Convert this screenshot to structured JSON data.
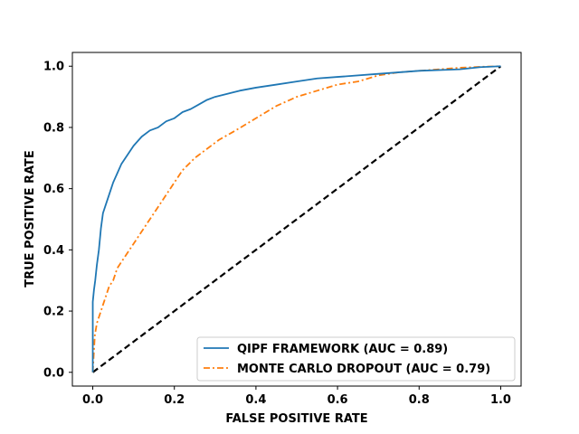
{
  "chart_data": {
    "type": "line",
    "title": "",
    "xlabel": "FALSE POSITIVE RATE",
    "ylabel": "TRUE POSITIVE RATE",
    "xlim": [
      -0.05,
      1.05
    ],
    "ylim": [
      -0.045,
      1.045
    ],
    "xticks": [
      "0.0",
      "0.2",
      "0.4",
      "0.6",
      "0.8",
      "1.0"
    ],
    "yticks": [
      "0.0",
      "0.2",
      "0.4",
      "0.6",
      "0.8",
      "1.0"
    ],
    "grid": false,
    "legend_position": "lower-right",
    "series": [
      {
        "name": "QIPF FRAMEWORK (AUC = 0.89)",
        "color": "#1f77b4",
        "style": "solid",
        "x": [
          0,
          0,
          0.003,
          0.006,
          0.01,
          0.015,
          0.02,
          0.025,
          0.03,
          0.04,
          0.05,
          0.06,
          0.07,
          0.08,
          0.09,
          0.1,
          0.12,
          0.14,
          0.16,
          0.18,
          0.2,
          0.22,
          0.24,
          0.26,
          0.28,
          0.3,
          0.33,
          0.36,
          0.4,
          0.45,
          0.5,
          0.55,
          0.6,
          0.7,
          0.8,
          0.9,
          0.95,
          1.0
        ],
        "y": [
          0,
          0.23,
          0.27,
          0.3,
          0.35,
          0.4,
          0.47,
          0.52,
          0.54,
          0.58,
          0.62,
          0.65,
          0.68,
          0.7,
          0.72,
          0.74,
          0.77,
          0.79,
          0.8,
          0.82,
          0.83,
          0.85,
          0.86,
          0.875,
          0.89,
          0.9,
          0.91,
          0.92,
          0.93,
          0.94,
          0.95,
          0.96,
          0.965,
          0.975,
          0.985,
          0.99,
          0.997,
          1.0
        ]
      },
      {
        "name": "MONTE CARLO DROPOUT (AUC = 0.79)",
        "color": "#ff7f0e",
        "style": "dashdot",
        "x": [
          0,
          0.005,
          0.01,
          0.02,
          0.03,
          0.04,
          0.05,
          0.06,
          0.08,
          0.1,
          0.12,
          0.14,
          0.16,
          0.18,
          0.2,
          0.22,
          0.25,
          0.28,
          0.31,
          0.35,
          0.4,
          0.45,
          0.5,
          0.55,
          0.6,
          0.65,
          0.7,
          0.75,
          0.8,
          0.85,
          0.9,
          0.95,
          1.0
        ],
        "y": [
          0,
          0.12,
          0.16,
          0.2,
          0.24,
          0.28,
          0.3,
          0.34,
          0.38,
          0.42,
          0.46,
          0.5,
          0.54,
          0.58,
          0.62,
          0.66,
          0.7,
          0.73,
          0.76,
          0.79,
          0.83,
          0.87,
          0.9,
          0.92,
          0.94,
          0.95,
          0.97,
          0.98,
          0.985,
          0.99,
          0.995,
          0.998,
          1.0
        ]
      },
      {
        "name": "",
        "color": "#000000",
        "style": "dashed",
        "x": [
          0,
          1
        ],
        "y": [
          0,
          1
        ]
      }
    ]
  }
}
